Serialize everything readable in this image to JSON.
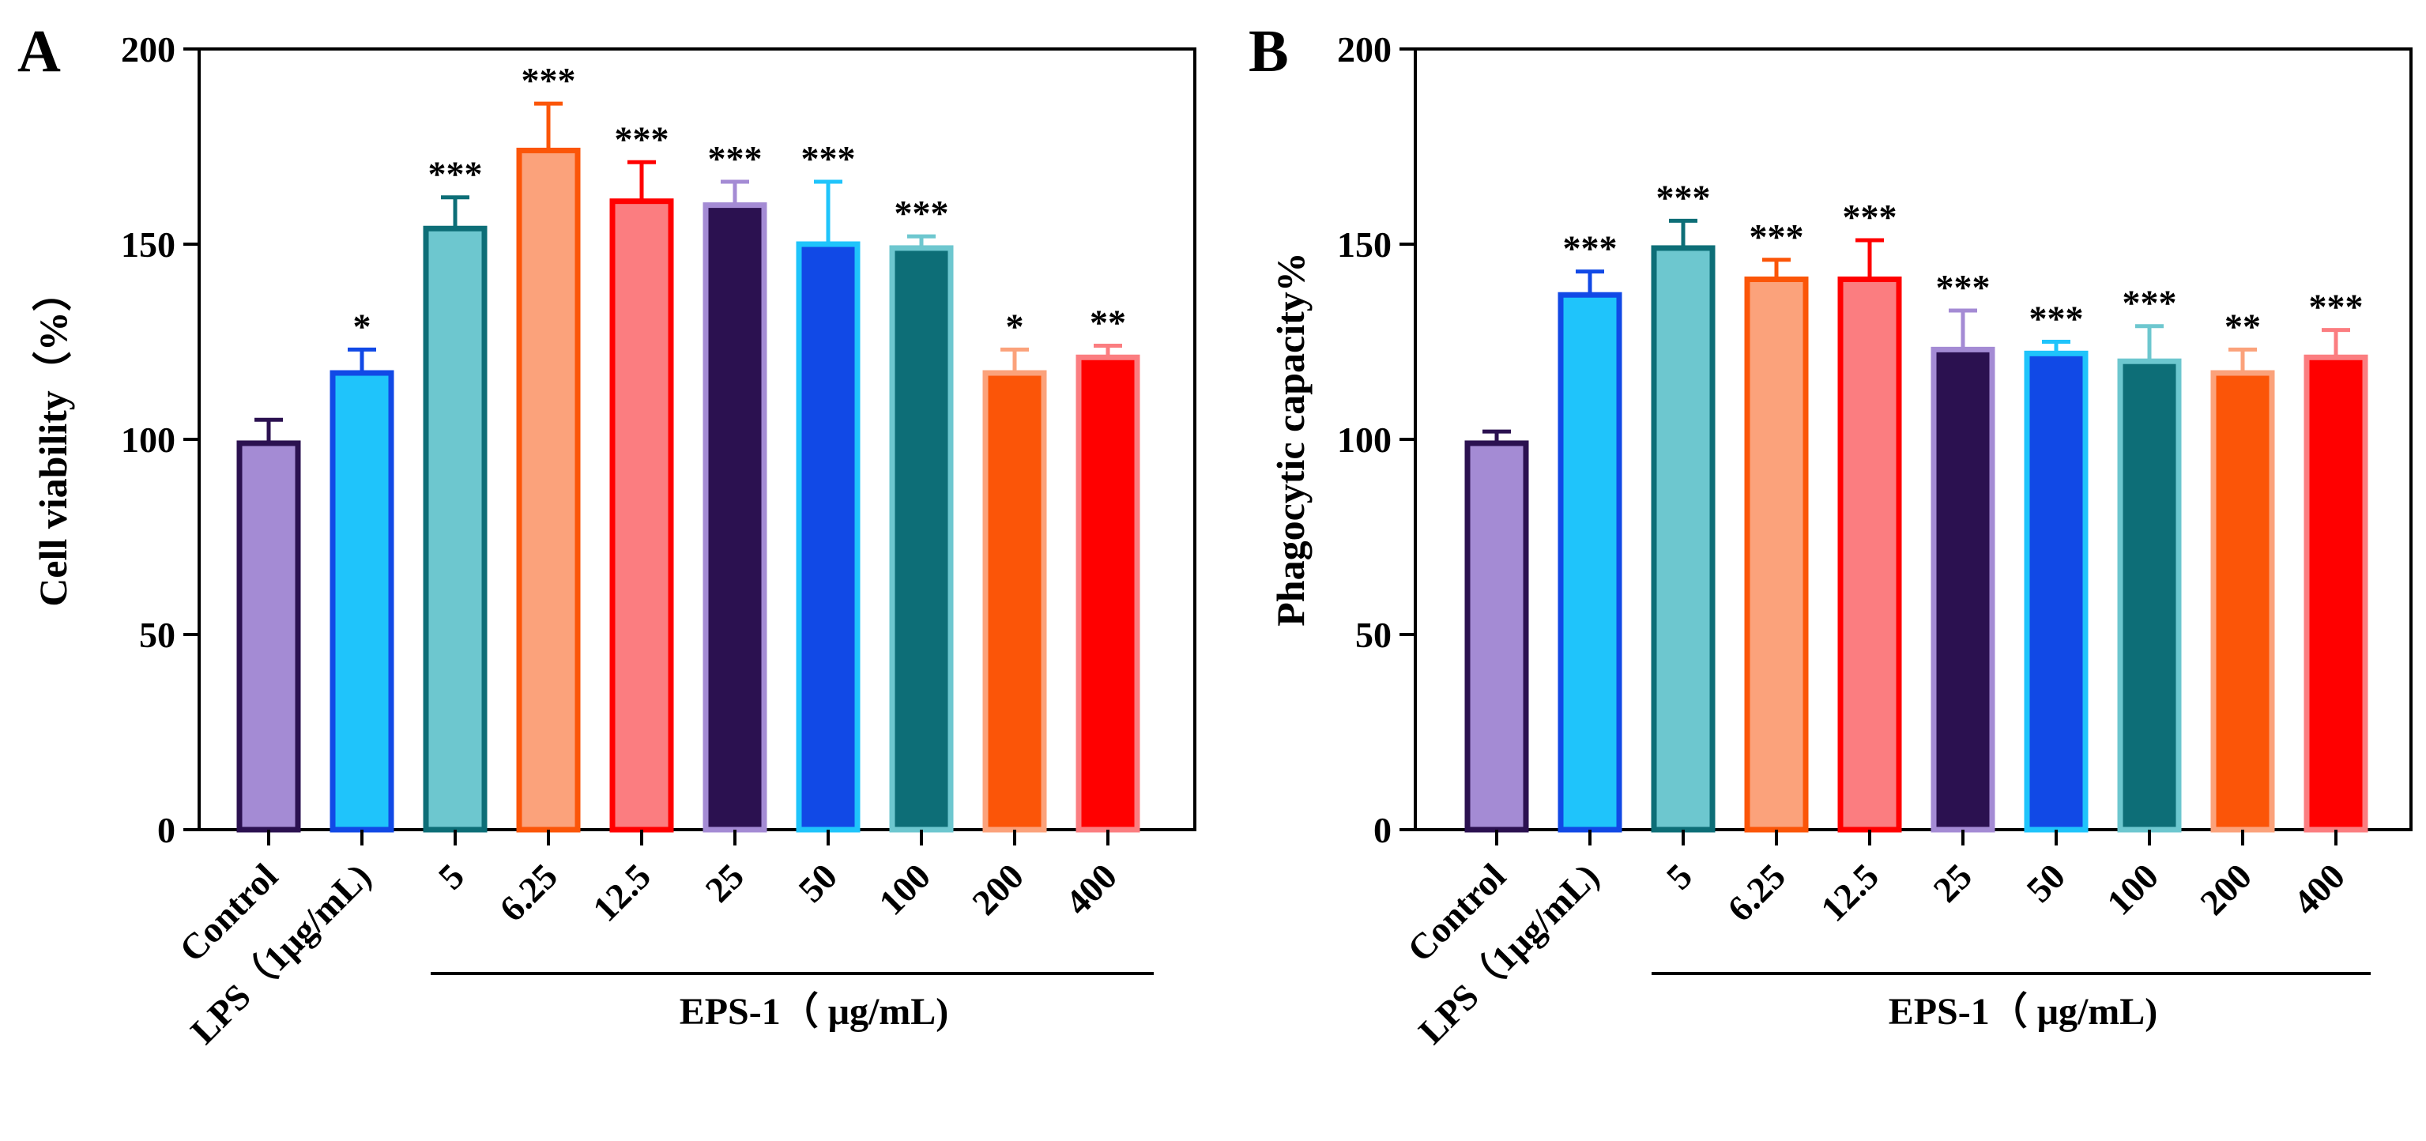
{
  "chart_data": [
    {
      "type": "bar",
      "panel": "A",
      "ylabel": "Cell viability（%）",
      "ylim": [
        0,
        200
      ],
      "yticks": [
        0,
        50,
        100,
        150,
        200
      ],
      "group_label": "EPS-1（ μg/mL)",
      "categories": [
        "Control",
        "LPS（1μg/mL)",
        "5",
        "6.25",
        "12.5",
        "25",
        "50",
        "100",
        "200",
        "400"
      ],
      "values": [
        99,
        117,
        154,
        174,
        161,
        160,
        150,
        149,
        117,
        121
      ],
      "errors": [
        6,
        6,
        8,
        12,
        10,
        6,
        16,
        3,
        6,
        3
      ],
      "significance": [
        "",
        "*",
        "***",
        "***",
        "***",
        "***",
        "***",
        "***",
        "*",
        "**"
      ],
      "fill_colors": [
        "#a48bd4",
        "#1fc4fb",
        "#6dc7cf",
        "#fba27b",
        "#fb7d80",
        "#2b1150",
        "#1149e6",
        "#0d6e77",
        "#fb5508",
        "#ff0000"
      ],
      "edge_colors": [
        "#2b1150",
        "#1149e6",
        "#0d6e77",
        "#fb5508",
        "#ff0000",
        "#a48bd4",
        "#1fc4fb",
        "#6dc7cf",
        "#fba27b",
        "#fb7d80"
      ]
    },
    {
      "type": "bar",
      "panel": "B",
      "ylabel": "Phagocytic capacity%",
      "ylim": [
        0,
        200
      ],
      "yticks": [
        0,
        50,
        100,
        150,
        200
      ],
      "group_label": "EPS-1（ μg/mL)",
      "categories": [
        "Control",
        "LPS（1μg/mL)",
        "5",
        "6.25",
        "12.5",
        "25",
        "50",
        "100",
        "200",
        "400"
      ],
      "values": [
        99,
        137,
        149,
        141,
        141,
        123,
        122,
        120,
        117,
        121
      ],
      "errors": [
        3,
        6,
        7,
        5,
        10,
        10,
        3,
        9,
        6,
        7
      ],
      "significance": [
        "",
        "***",
        "***",
        "***",
        "***",
        "***",
        "***",
        "***",
        "**",
        "***"
      ],
      "fill_colors": [
        "#a48bd4",
        "#1fc4fb",
        "#6dc7cf",
        "#fba27b",
        "#fb7d80",
        "#2b1150",
        "#1149e6",
        "#0d6e77",
        "#fb5508",
        "#ff0000"
      ],
      "edge_colors": [
        "#2b1150",
        "#1149e6",
        "#0d6e77",
        "#fb5508",
        "#ff0000",
        "#a48bd4",
        "#1fc4fb",
        "#6dc7cf",
        "#fba27b",
        "#fb7d80"
      ]
    }
  ]
}
